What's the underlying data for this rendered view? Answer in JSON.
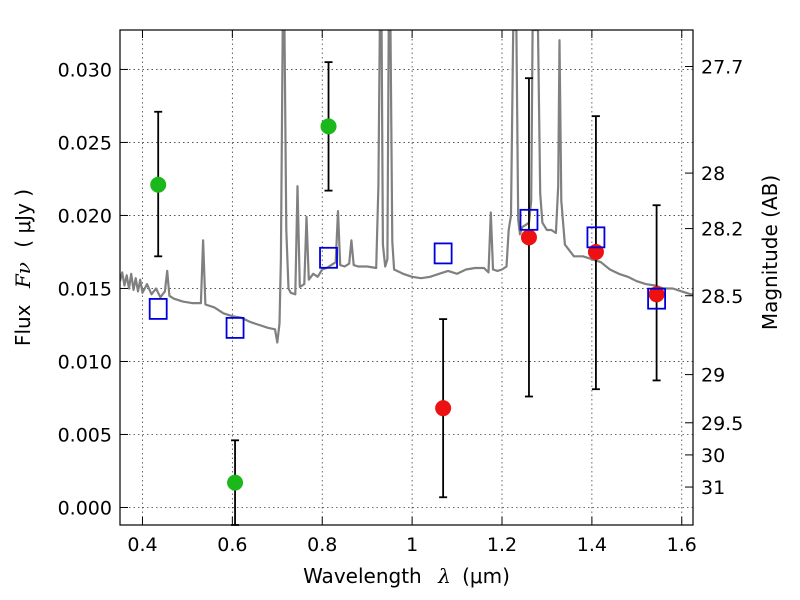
{
  "chart_data": {
    "type": "scatter",
    "xlabel_text": "Wavelength",
    "xlabel_symbol": "λ",
    "xlabel_unit": "(μm)",
    "ylabel_text": "Flux",
    "ylabel_symbol": "Fν",
    "ylabel_unit": "( μJy )",
    "y2label": "Magnitude (AB)",
    "xlim": [
      0.35,
      1.625
    ],
    "ylim": [
      -0.0012,
      0.0327
    ],
    "grid": true,
    "xticks": [
      0.4,
      0.6,
      0.8,
      1.0,
      1.2,
      1.4,
      1.6
    ],
    "xtick_labels": [
      "0.4",
      "0.6",
      "0.8",
      "1",
      "1.2",
      "1.4",
      "1.6"
    ],
    "yticks": [
      0.0,
      0.005,
      0.01,
      0.015,
      0.02,
      0.025,
      0.03
    ],
    "ytick_labels": [
      "0.000",
      "0.005",
      "0.010",
      "0.015",
      "0.020",
      "0.025",
      "0.030"
    ],
    "mag_ticks": [
      {
        "label": "27.7",
        "flux": 0.0302
      },
      {
        "label": "28",
        "flux": 0.0229
      },
      {
        "label": "28.2",
        "flux": 0.0191
      },
      {
        "label": "28.5",
        "flux": 0.0145
      },
      {
        "label": "29",
        "flux": 0.0091
      },
      {
        "label": "29.5",
        "flux": 0.0058
      },
      {
        "label": "30",
        "flux": 0.0036
      },
      {
        "label": "31",
        "flux": 0.0014
      }
    ],
    "colors": {
      "detected": "#1ab81a",
      "model_fit": "#ee1111",
      "model_box": "#0000dd",
      "spectrum": "#808080",
      "errorbar": "#000000"
    },
    "series": [
      {
        "marker": "circle",
        "color_key": "detected",
        "points": [
          {
            "x": 0.435,
            "y": 0.0221,
            "yerr_low": 0.0172,
            "yerr_high": 0.0271
          },
          {
            "x": 0.606,
            "y": 0.0017,
            "yerr_low": -0.0012,
            "yerr_high": 0.0046
          },
          {
            "x": 0.814,
            "y": 0.0261,
            "yerr_low": 0.0217,
            "yerr_high": 0.0305
          }
        ]
      },
      {
        "marker": "circle",
        "color_key": "model_fit",
        "points": [
          {
            "x": 1.069,
            "y": 0.0068,
            "yerr_low": 0.0007,
            "yerr_high": 0.0129
          },
          {
            "x": 1.26,
            "y": 0.0185,
            "yerr_low": 0.0076,
            "yerr_high": 0.0294
          },
          {
            "x": 1.409,
            "y": 0.0175,
            "yerr_low": 0.0081,
            "yerr_high": 0.0268
          },
          {
            "x": 1.544,
            "y": 0.0146,
            "yerr_low": 0.0087,
            "yerr_high": 0.0207
          }
        ]
      },
      {
        "marker": "square",
        "color_key": "model_box",
        "points": [
          {
            "x": 0.435,
            "y": 0.0136
          },
          {
            "x": 0.606,
            "y": 0.0123
          },
          {
            "x": 0.814,
            "y": 0.0171
          },
          {
            "x": 1.069,
            "y": 0.0174
          },
          {
            "x": 1.26,
            "y": 0.0197
          },
          {
            "x": 1.409,
            "y": 0.0185
          },
          {
            "x": 1.544,
            "y": 0.0143
          }
        ]
      }
    ],
    "spectrum": [
      [
        0.35,
        0.0155
      ],
      [
        0.355,
        0.0161
      ],
      [
        0.36,
        0.0152
      ],
      [
        0.365,
        0.0159
      ],
      [
        0.37,
        0.015
      ],
      [
        0.375,
        0.016
      ],
      [
        0.38,
        0.0149
      ],
      [
        0.385,
        0.0157
      ],
      [
        0.39,
        0.0148
      ],
      [
        0.395,
        0.0156
      ],
      [
        0.4,
        0.0147
      ],
      [
        0.41,
        0.0153
      ],
      [
        0.42,
        0.0146
      ],
      [
        0.43,
        0.015
      ],
      [
        0.44,
        0.0144
      ],
      [
        0.45,
        0.0148
      ],
      [
        0.455,
        0.0162
      ],
      [
        0.46,
        0.0145
      ],
      [
        0.47,
        0.0143
      ],
      [
        0.49,
        0.0141
      ],
      [
        0.51,
        0.014
      ],
      [
        0.53,
        0.014
      ],
      [
        0.535,
        0.0183
      ],
      [
        0.54,
        0.0139
      ],
      [
        0.56,
        0.0137
      ],
      [
        0.58,
        0.0133
      ],
      [
        0.6,
        0.0131
      ],
      [
        0.62,
        0.013
      ],
      [
        0.64,
        0.0127
      ],
      [
        0.66,
        0.0125
      ],
      [
        0.68,
        0.0123
      ],
      [
        0.695,
        0.0122
      ],
      [
        0.7,
        0.0113
      ],
      [
        0.705,
        0.0126
      ],
      [
        0.708,
        0.017
      ],
      [
        0.712,
        0.0327
      ],
      [
        0.716,
        0.0327
      ],
      [
        0.72,
        0.019
      ],
      [
        0.725,
        0.015
      ],
      [
        0.73,
        0.0147
      ],
      [
        0.74,
        0.0146
      ],
      [
        0.745,
        0.022
      ],
      [
        0.75,
        0.0151
      ],
      [
        0.76,
        0.0153
      ],
      [
        0.765,
        0.0199
      ],
      [
        0.77,
        0.0156
      ],
      [
        0.78,
        0.016
      ],
      [
        0.79,
        0.0158
      ],
      [
        0.8,
        0.0163
      ],
      [
        0.81,
        0.0164
      ],
      [
        0.82,
        0.0166
      ],
      [
        0.83,
        0.0168
      ],
      [
        0.835,
        0.0203
      ],
      [
        0.84,
        0.0166
      ],
      [
        0.85,
        0.0165
      ],
      [
        0.86,
        0.0167
      ],
      [
        0.865,
        0.0183
      ],
      [
        0.87,
        0.0166
      ],
      [
        0.88,
        0.0165
      ],
      [
        0.9,
        0.0165
      ],
      [
        0.92,
        0.0164
      ],
      [
        0.925,
        0.022
      ],
      [
        0.928,
        0.0327
      ],
      [
        0.932,
        0.0327
      ],
      [
        0.935,
        0.018
      ],
      [
        0.94,
        0.0165
      ],
      [
        0.945,
        0.017
      ],
      [
        0.948,
        0.0327
      ],
      [
        0.952,
        0.0327
      ],
      [
        0.956,
        0.0182
      ],
      [
        0.96,
        0.0163
      ],
      [
        0.98,
        0.016
      ],
      [
        1.0,
        0.0158
      ],
      [
        1.02,
        0.0157
      ],
      [
        1.04,
        0.0158
      ],
      [
        1.06,
        0.016
      ],
      [
        1.08,
        0.0162
      ],
      [
        1.1,
        0.016
      ],
      [
        1.12,
        0.0163
      ],
      [
        1.14,
        0.0164
      ],
      [
        1.16,
        0.0164
      ],
      [
        1.17,
        0.0161
      ],
      [
        1.175,
        0.0202
      ],
      [
        1.18,
        0.0163
      ],
      [
        1.19,
        0.0162
      ],
      [
        1.2,
        0.0163
      ],
      [
        1.21,
        0.0165
      ],
      [
        1.215,
        0.019
      ],
      [
        1.22,
        0.02
      ],
      [
        1.225,
        0.0327
      ],
      [
        1.232,
        0.0327
      ],
      [
        1.236,
        0.0197
      ],
      [
        1.24,
        0.0187
      ],
      [
        1.245,
        0.0192
      ],
      [
        1.25,
        0.0193
      ],
      [
        1.26,
        0.0195
      ],
      [
        1.265,
        0.021
      ],
      [
        1.268,
        0.0327
      ],
      [
        1.28,
        0.0327
      ],
      [
        1.285,
        0.0215
      ],
      [
        1.29,
        0.0195
      ],
      [
        1.3,
        0.019
      ],
      [
        1.31,
        0.019
      ],
      [
        1.32,
        0.0188
      ],
      [
        1.325,
        0.022
      ],
      [
        1.328,
        0.032
      ],
      [
        1.332,
        0.021
      ],
      [
        1.34,
        0.018
      ],
      [
        1.36,
        0.0172
      ],
      [
        1.38,
        0.0172
      ],
      [
        1.4,
        0.017
      ],
      [
        1.42,
        0.0168
      ],
      [
        1.44,
        0.0163
      ],
      [
        1.46,
        0.016
      ],
      [
        1.48,
        0.0158
      ],
      [
        1.5,
        0.0155
      ],
      [
        1.52,
        0.0153
      ],
      [
        1.54,
        0.0152
      ],
      [
        1.56,
        0.015
      ],
      [
        1.58,
        0.015
      ],
      [
        1.6,
        0.0148
      ],
      [
        1.62,
        0.0146
      ],
      [
        1.625,
        0.0146
      ]
    ]
  }
}
